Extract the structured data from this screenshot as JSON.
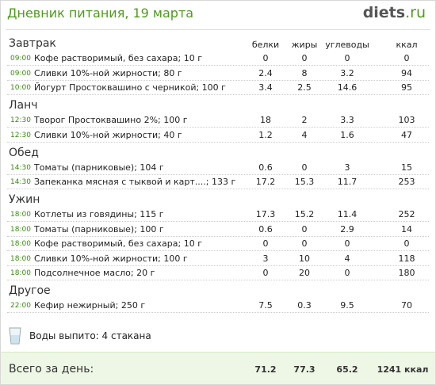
{
  "header": {
    "title": "Дневник питания, 19 марта",
    "logo_main": "diets",
    "logo_suffix": ".ru"
  },
  "columns": [
    "белки",
    "жиры",
    "углеводы",
    "ккал"
  ],
  "sections": [
    {
      "name": "Завтрак",
      "rows": [
        {
          "time": "09:00",
          "food": "Кофе растворимый, без сахара; 10 г",
          "values": [
            0,
            0,
            0,
            0
          ]
        },
        {
          "time": "09:00",
          "food": "Сливки 10%-ной жирности; 80 г",
          "values": [
            2.4,
            8,
            3.2,
            94
          ]
        },
        {
          "time": "10:00",
          "food": "Йогурт Простоквашино с черникой; 100 г",
          "values": [
            3.4,
            2.5,
            14.6,
            95
          ]
        }
      ]
    },
    {
      "name": "Ланч",
      "rows": [
        {
          "time": "12:30",
          "food": "Творог Простоквашино 2%; 100 г",
          "values": [
            18,
            2,
            3.3,
            103
          ]
        },
        {
          "time": "12:30",
          "food": "Сливки 10%-ной жирности; 40 г",
          "values": [
            1.2,
            4,
            1.6,
            47
          ]
        }
      ]
    },
    {
      "name": "Обед",
      "rows": [
        {
          "time": "14:30",
          "food": "Томаты (парниковые); 104 г",
          "values": [
            0.6,
            0,
            3,
            15
          ]
        },
        {
          "time": "14:30",
          "food": "Запеканка мясная с тыквой и карт....; 133 г",
          "values": [
            17.2,
            15.3,
            11.7,
            253
          ]
        }
      ]
    },
    {
      "name": "Ужин",
      "rows": [
        {
          "time": "18:00",
          "food": "Котлеты из говядины; 115 г",
          "values": [
            17.3,
            15.2,
            11.4,
            252
          ]
        },
        {
          "time": "18:00",
          "food": "Томаты (парниковые); 100 г",
          "values": [
            0.6,
            0,
            2.9,
            14
          ]
        },
        {
          "time": "18:00",
          "food": "Кофе растворимый, без сахара; 10 г",
          "values": [
            0,
            0,
            0,
            0
          ]
        },
        {
          "time": "18:00",
          "food": "Сливки 10%-ной жирности; 100 г",
          "values": [
            3,
            10,
            4,
            118
          ]
        },
        {
          "time": "18:00",
          "food": "Подсолнечное масло; 20 г",
          "values": [
            0,
            20,
            0,
            180
          ]
        }
      ]
    },
    {
      "name": "Другое",
      "rows": [
        {
          "time": "22:00",
          "food": "Кефир нежирный; 250 г",
          "values": [
            7.5,
            0.3,
            9.5,
            70
          ]
        }
      ]
    }
  ],
  "water": "Воды выпито: 4 стакана",
  "total": {
    "label": "Всего за день:",
    "values": [
      71.2,
      77.3,
      65.2,
      "1241 ккал"
    ]
  }
}
